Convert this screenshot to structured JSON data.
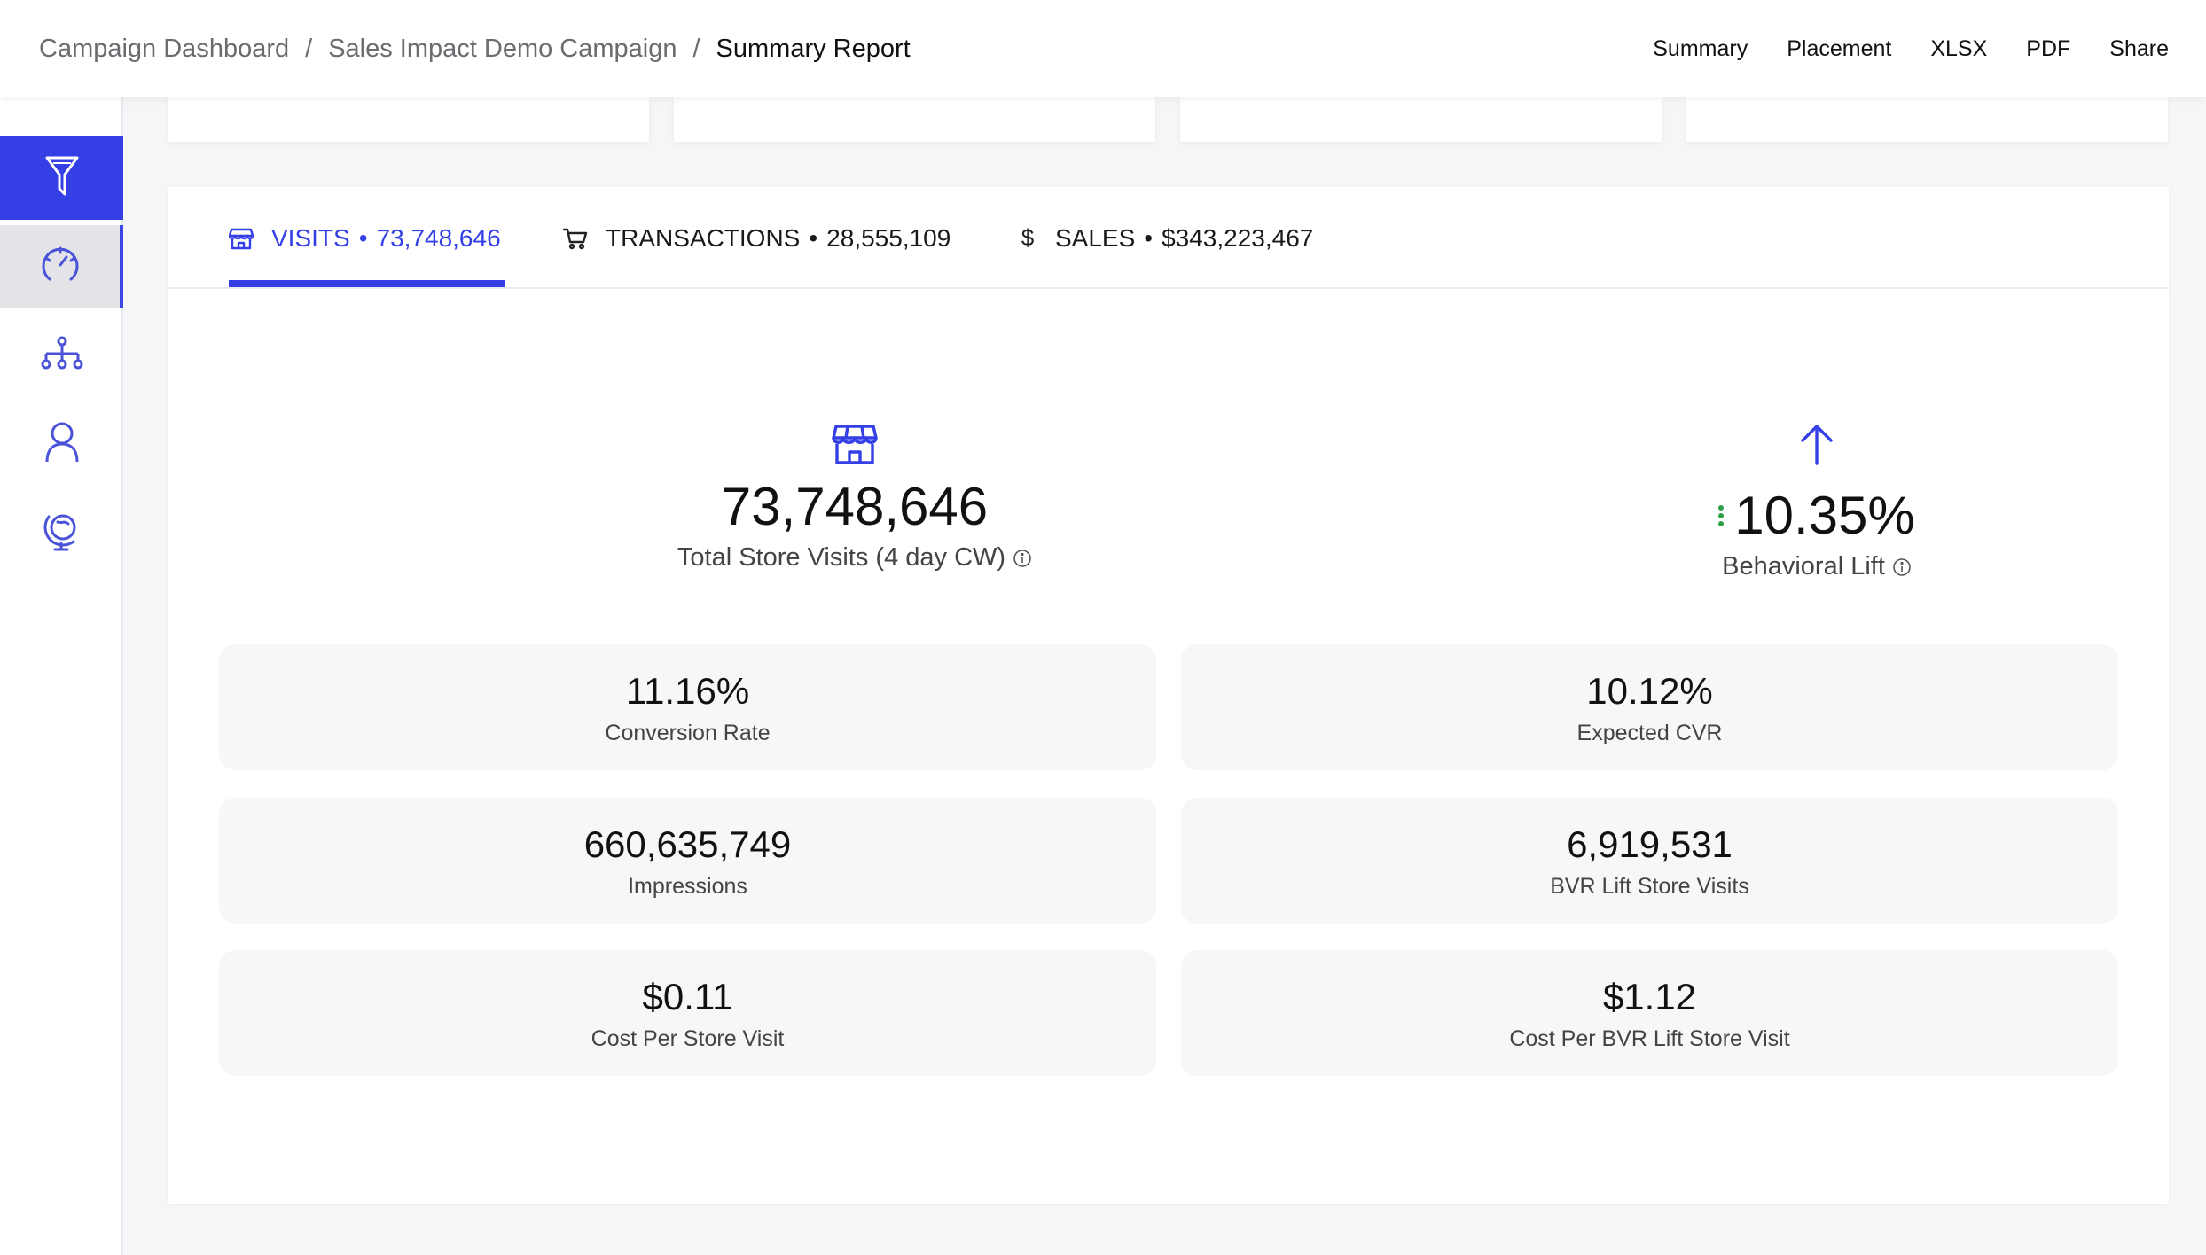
{
  "header": {
    "breadcrumb": [
      "Campaign Dashboard",
      "Sales Impact Demo Campaign",
      "Summary Report"
    ],
    "separator": "/",
    "nav": [
      "Summary",
      "Placement",
      "XLSX",
      "PDF",
      "Share"
    ]
  },
  "sidebar": {
    "items": [
      {
        "icon": "filter-icon",
        "active": false
      },
      {
        "icon": "gauge-icon",
        "active": true
      },
      {
        "icon": "hierarchy-icon",
        "active": false
      },
      {
        "icon": "user-icon",
        "active": false
      },
      {
        "icon": "globe-icon",
        "active": false
      }
    ]
  },
  "tabs": [
    {
      "icon": "store-icon",
      "label": "VISITS",
      "value": "73,748,646",
      "active": true
    },
    {
      "icon": "cart-icon",
      "label": "TRANSACTIONS",
      "value": "28,555,109",
      "active": false
    },
    {
      "icon": "dollar-icon",
      "label": "SALES",
      "value": "$343,223,467",
      "active": false
    }
  ],
  "tab_dot": "•",
  "hero": {
    "visits_value": "73,748,646",
    "visits_label": "Total Store Visits (4 day CW)",
    "lift_value": "10.35%",
    "lift_label": "Behavioral Lift"
  },
  "metrics": [
    {
      "value": "11.16%",
      "label": "Conversion Rate"
    },
    {
      "value": "10.12%",
      "label": "Expected CVR"
    },
    {
      "value": "660,635,749",
      "label": "Impressions"
    },
    {
      "value": "6,919,531",
      "label": "BVR Lift Store Visits"
    },
    {
      "value": "$0.11",
      "label": "Cost Per Store Visit"
    },
    {
      "value": "$1.12",
      "label": "Cost Per BVR Lift Store Visit"
    }
  ],
  "colors": {
    "accent": "#3440e6",
    "positive": "#2e9e48",
    "background": "#f6f5f7"
  }
}
